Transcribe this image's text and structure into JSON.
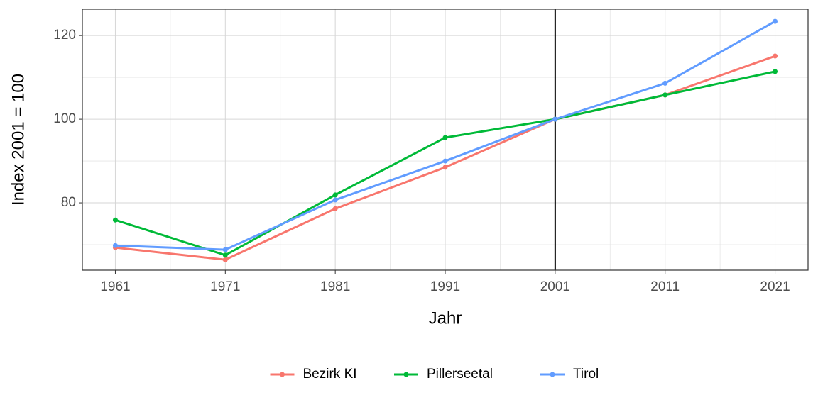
{
  "chart_data": {
    "type": "line",
    "x_label": "Jahr",
    "y_label": "Index 2001 = 100",
    "x": [
      1961,
      1971,
      1981,
      1991,
      2001,
      2011,
      2021
    ],
    "series": [
      {
        "name": "Bezirk KI",
        "color": "#F8766D",
        "values": [
          69.3,
          66.4,
          78.6,
          88.5,
          100,
          105.8,
          115.1
        ]
      },
      {
        "name": "Pillerseetal",
        "color": "#00BA38",
        "values": [
          75.9,
          67.5,
          81.9,
          95.6,
          100,
          105.8,
          111.4
        ]
      },
      {
        "name": "Tirol",
        "color": "#619CFF",
        "values": [
          69.8,
          68.8,
          80.7,
          90.0,
          100,
          108.6,
          123.4
        ]
      }
    ],
    "xlim": [
      1958,
      2024
    ],
    "xticks": [
      1961,
      1971,
      1981,
      1991,
      2001,
      2011,
      2021
    ],
    "minor_xticks": [
      1966,
      1976,
      1986,
      1996,
      2006,
      2016
    ],
    "ylim": [
      63.9,
      126.3
    ],
    "yticks": [
      80,
      100,
      120
    ],
    "minor_yticks": [
      70,
      90,
      110
    ],
    "reference_line_x": 2001,
    "grid": true,
    "legend_position": "bottom"
  }
}
